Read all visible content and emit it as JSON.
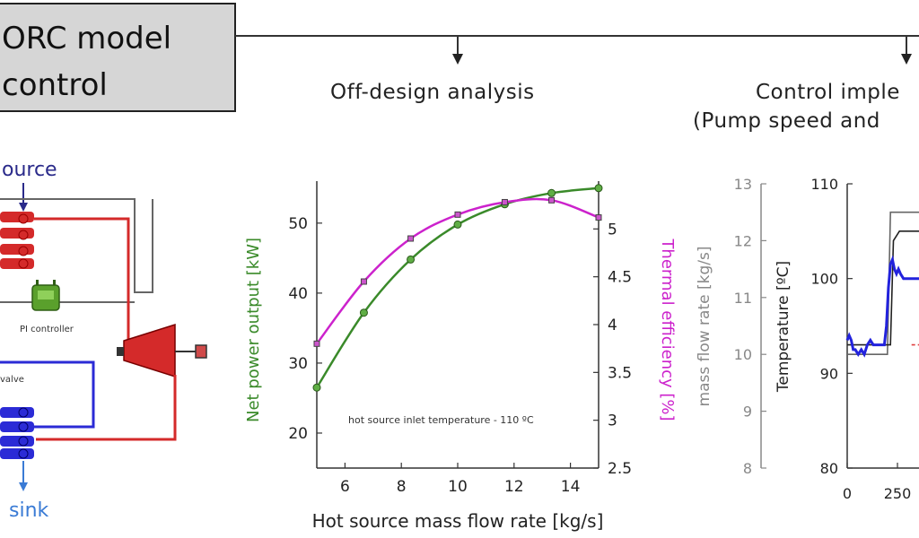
{
  "title_box": {
    "line1": "ORC model",
    "line2": "control"
  },
  "branch_titles": {
    "offdesign": "Off-design analysis",
    "control_line1": "Control imple",
    "control_line2": "(Pump speed and"
  },
  "schematic": {
    "source_label": "ource",
    "controller_label": "PI controller",
    "valve_label": "valve",
    "sink_label": "sink",
    "colors": {
      "hot": "#d42a2a",
      "cold": "#2b2bd6",
      "pipe": "#444444",
      "controller": "#5aa02c",
      "label_blue": "#2a2a8a",
      "sink_blue": "#3a7bd5"
    }
  },
  "chart_data": [
    {
      "type": "line",
      "title": "",
      "xlabel": "Hot source mass flow rate [kg/s]",
      "ylabel": "Net power output [kW]",
      "y2label": "Thermal efficiency [%]",
      "annotation": "hot source inlet temperature - 110 ºC",
      "xlim": [
        5,
        15
      ],
      "ylim": [
        15,
        56
      ],
      "y2lim": [
        2.5,
        5.5
      ],
      "xticks": [
        6,
        8,
        10,
        12,
        14
      ],
      "yticks": [
        20,
        30,
        40,
        50
      ],
      "y2ticks": [
        2.5,
        3,
        3.5,
        4,
        4.5,
        5
      ],
      "series": [
        {
          "axis": "left",
          "color": "#3a8a2a",
          "x": [
            5,
            6.67,
            8.33,
            10,
            11.67,
            13.33,
            15
          ],
          "values": [
            26.5,
            37.2,
            44.8,
            49.8,
            52.7,
            54.3,
            55.0
          ]
        },
        {
          "axis": "right",
          "color": "#cc22cc",
          "x": [
            5,
            6.67,
            8.33,
            10,
            11.67,
            13.33,
            15
          ],
          "values": [
            3.8,
            4.45,
            4.9,
            5.15,
            5.28,
            5.3,
            5.12
          ]
        }
      ]
    },
    {
      "type": "line",
      "title": "",
      "ylabel": "mass flow rate [kg/s]",
      "ylim": [
        8,
        13
      ],
      "yticks": [
        8,
        9,
        10,
        11,
        12,
        13
      ]
    },
    {
      "type": "line",
      "title": "",
      "ylabel": "Temperature [ºC]",
      "xlim": [
        0,
        400
      ],
      "xticks": [
        0,
        250
      ],
      "ylim": [
        80,
        110
      ],
      "yticks": [
        80,
        90,
        100,
        110
      ],
      "series": [
        {
          "color": "#666666",
          "x": [
            0,
            5,
            20,
            60,
            100,
            140,
            170,
            185,
            200,
            215,
            260,
            400
          ],
          "values": [
            92,
            92,
            92,
            92,
            92,
            92,
            92,
            92,
            92,
            107,
            107,
            107
          ]
        },
        {
          "color": "#222222",
          "x": [
            0,
            20,
            60,
            100,
            140,
            170,
            185,
            200,
            215,
            230,
            260,
            400
          ],
          "values": [
            93,
            93,
            93,
            93,
            93,
            93,
            93,
            93,
            93,
            104,
            105,
            105
          ]
        },
        {
          "color": "#2222dd",
          "x": [
            0,
            10,
            20,
            30,
            40,
            55,
            70,
            85,
            100,
            115,
            130,
            150,
            170,
            185,
            195,
            205,
            215,
            225,
            235,
            245,
            255,
            265,
            280,
            400
          ],
          "values": [
            93.5,
            94,
            93.5,
            92.5,
            92.5,
            92,
            92.5,
            92,
            93,
            93.5,
            93,
            93,
            93,
            93,
            95,
            99,
            101.5,
            102,
            101,
            100.5,
            101,
            100.5,
            100,
            100
          ]
        },
        {
          "color": "#e04040",
          "x": [
            320,
            400
          ],
          "values": [
            93,
            93
          ]
        }
      ]
    }
  ]
}
